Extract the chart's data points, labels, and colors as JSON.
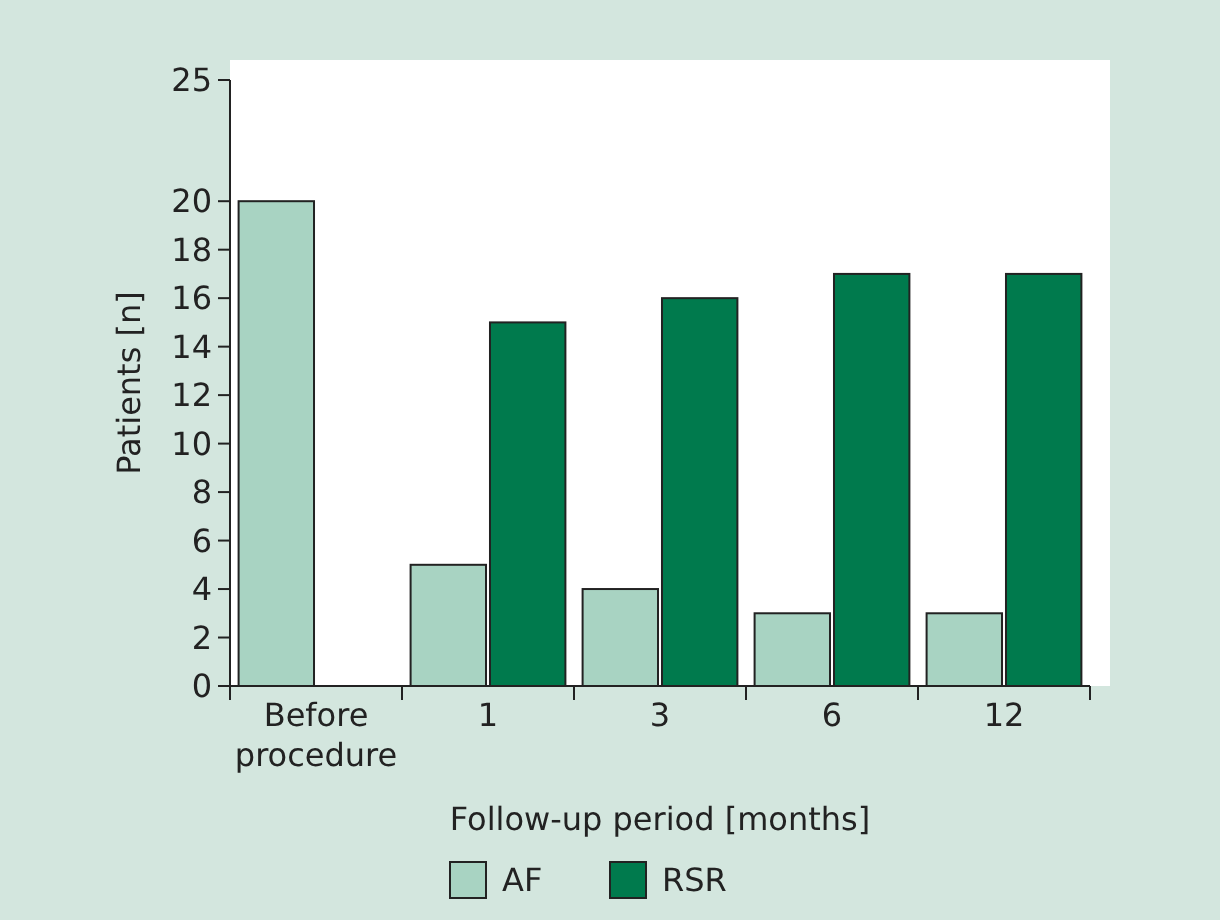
{
  "chart_data": {
    "type": "bar",
    "xlabel": "Follow-up period [months]",
    "ylabel": "Patients [n]",
    "categories": [
      "Before procedure",
      "1",
      "3",
      "6",
      "12"
    ],
    "series": [
      {
        "name": "AF",
        "color": "#a8d3c2",
        "values": [
          20,
          5,
          4,
          3,
          3
        ]
      },
      {
        "name": "RSR",
        "color": "#007a4d",
        "values": [
          0,
          15,
          16,
          17,
          17
        ]
      }
    ],
    "ylim": [
      0,
      25
    ],
    "yticks": [
      0,
      2,
      4,
      6,
      8,
      10,
      12,
      14,
      16,
      18,
      20,
      25
    ],
    "grid": false,
    "legend": "bottom"
  }
}
